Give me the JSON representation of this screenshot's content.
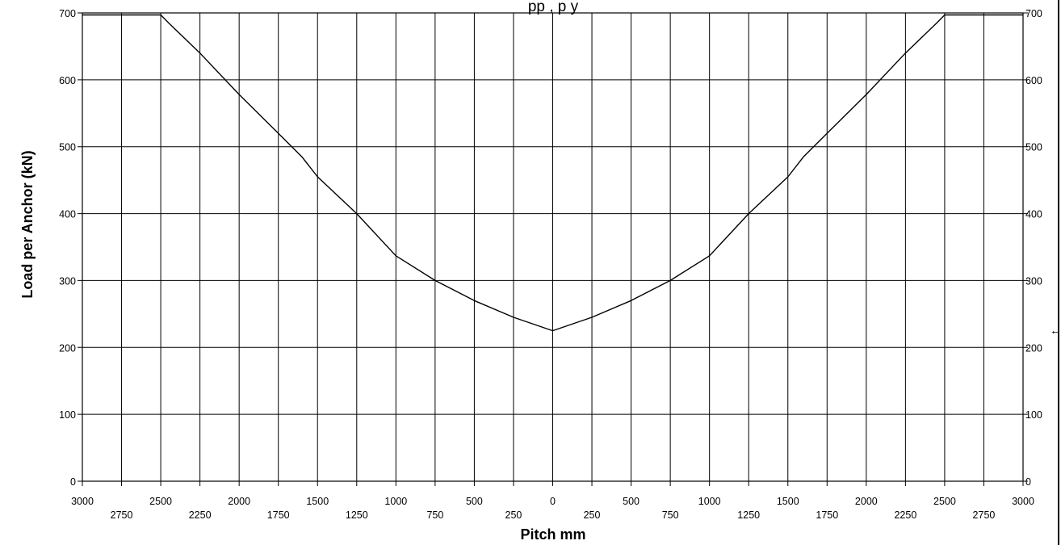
{
  "chart_data": {
    "type": "line",
    "title_partial": "pp        ,        p  y",
    "xlabel": "Pitch mm",
    "ylabel": "Load per Anchor (kN)",
    "ylim": [
      0,
      700
    ],
    "y_ticks": [
      0,
      100,
      200,
      300,
      400,
      500,
      600,
      700
    ],
    "x_axis_printed_labels": {
      "major": [
        "3000",
        "2500",
        "2000",
        "1500",
        "1000",
        "500",
        "0",
        "500",
        "1000",
        "1500",
        "2000",
        "2500",
        "3000"
      ],
      "minor": [
        "2750",
        "2250",
        "1750",
        "1250",
        "750",
        "250",
        "250",
        "750",
        "1250",
        "1750",
        "2250",
        "2750"
      ]
    },
    "grid": true,
    "series": [
      {
        "x": [
          -3000,
          -2500,
          -2450,
          -2250,
          -2000,
          -1750,
          -1600,
          -1500,
          -1250,
          -1000,
          -750,
          -500,
          -250,
          0,
          250,
          500,
          750,
          1000,
          1250,
          1500,
          1600,
          1750,
          2000,
          2250,
          2450,
          2500,
          3000
        ],
        "y": [
          697,
          697,
          685,
          640,
          578,
          520,
          485,
          455,
          400,
          337,
          300,
          270,
          245,
          225,
          245,
          270,
          300,
          337,
          400,
          455,
          485,
          520,
          578,
          640,
          685,
          697,
          697
        ]
      }
    ]
  },
  "marker_glyph": "←"
}
